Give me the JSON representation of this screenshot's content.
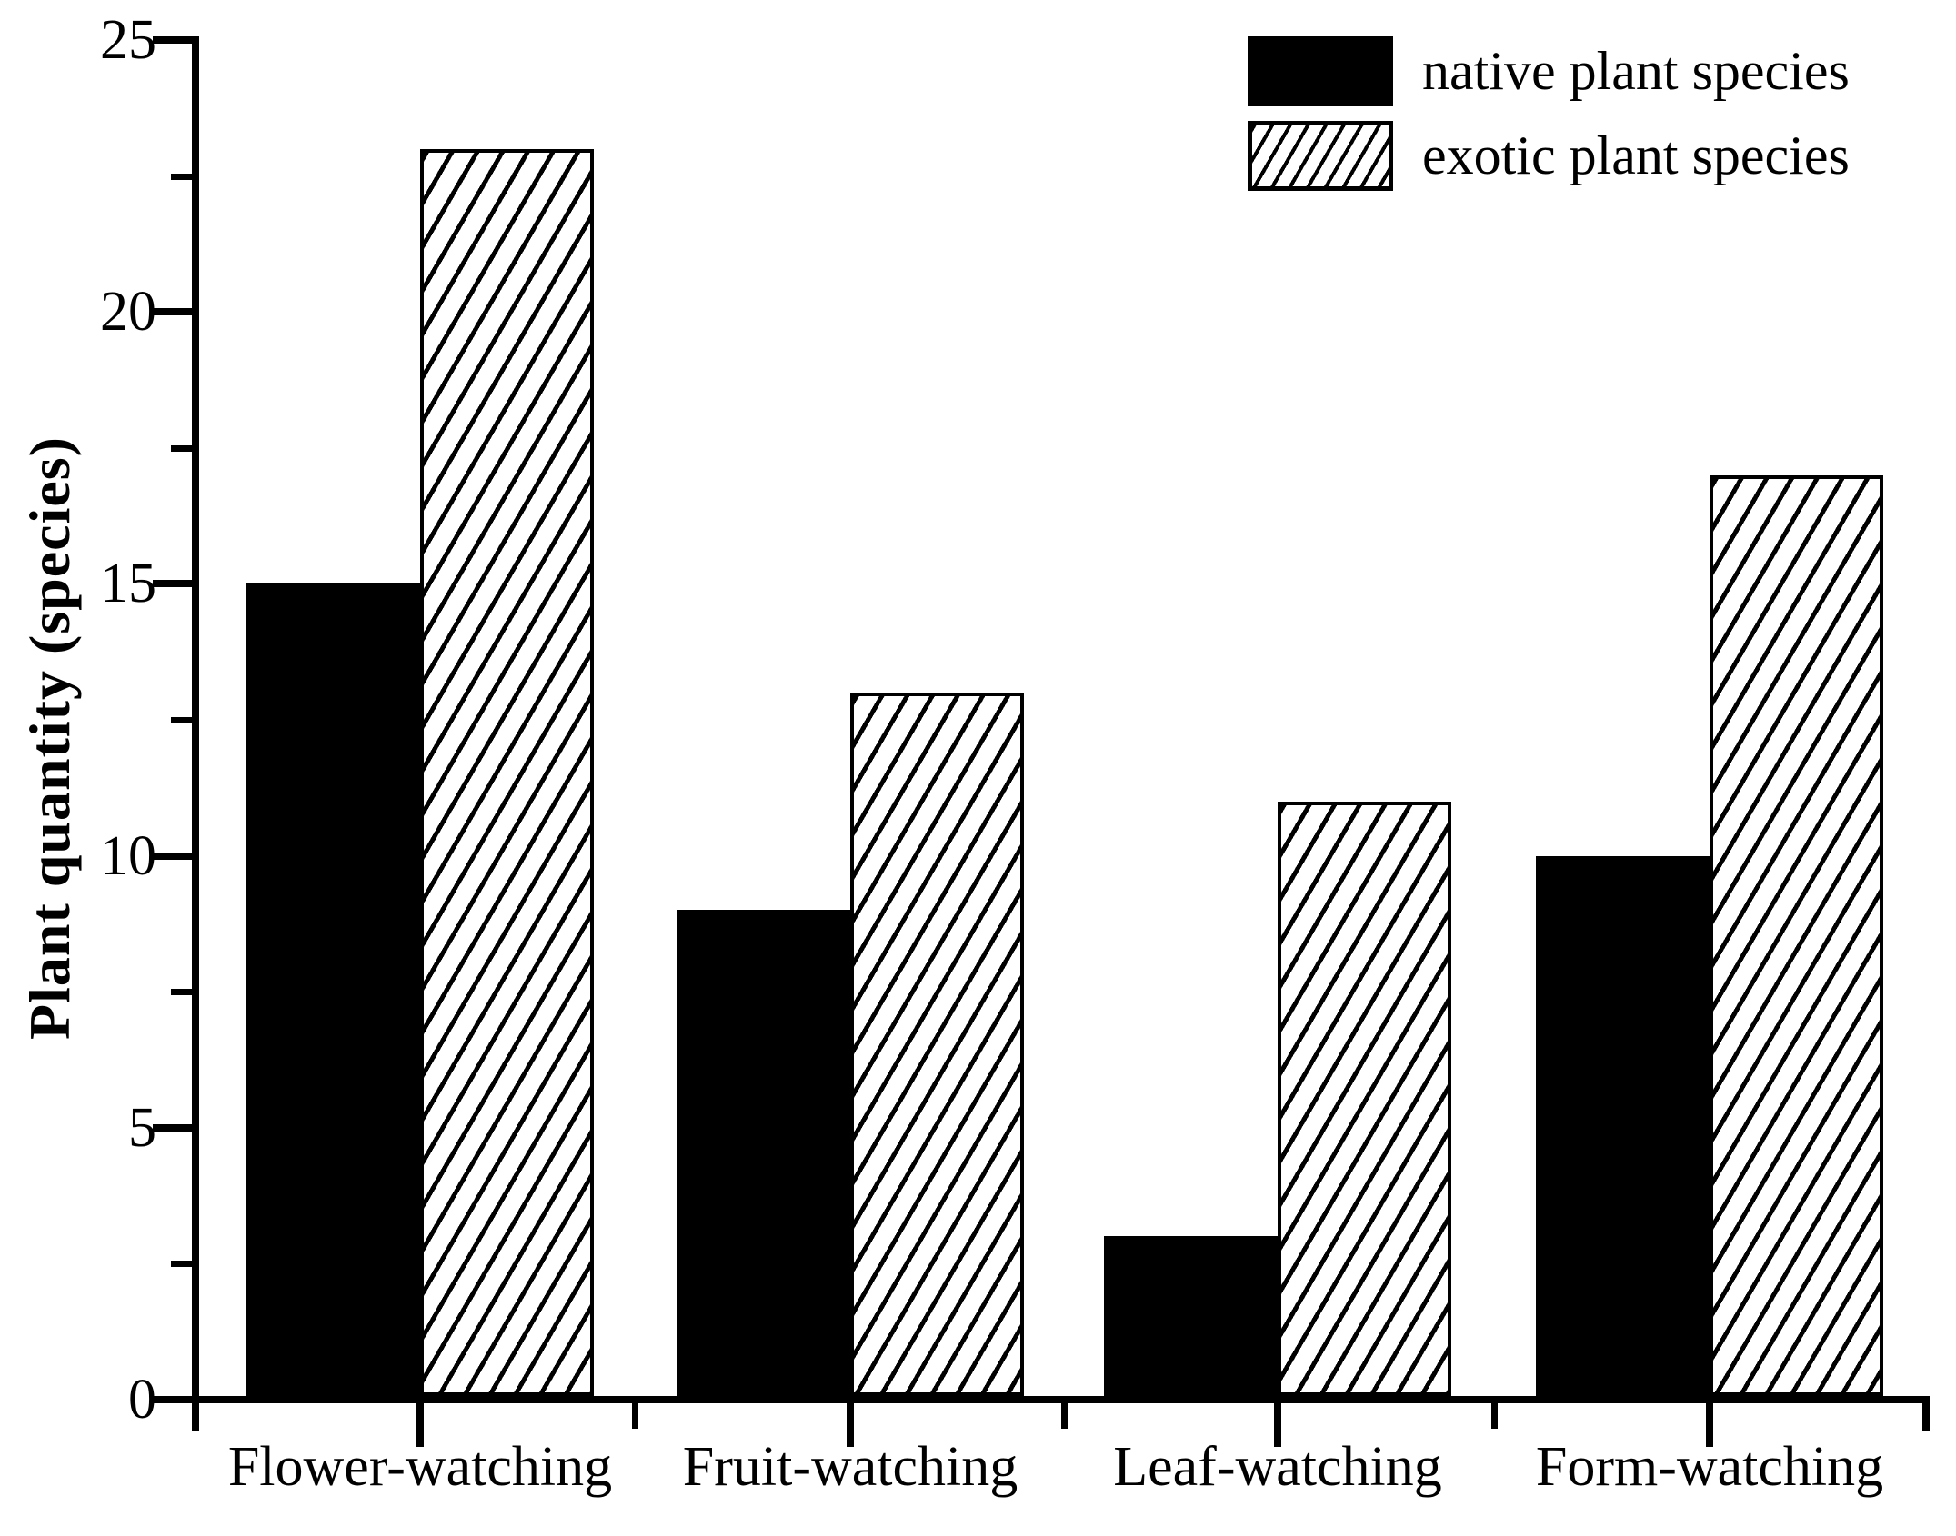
{
  "colors": {
    "foreground": "#000000",
    "background": "#ffffff"
  },
  "chart_data": {
    "type": "bar",
    "title": "",
    "xlabel": "",
    "ylabel": "Plant quantity (species)",
    "categories": [
      "Flower-watching",
      "Fruit-watching",
      "Leaf-watching",
      "Form-watching"
    ],
    "series": [
      {
        "name": "native plant species",
        "fill": "solid-black",
        "values": [
          15,
          9,
          3,
          10
        ]
      },
      {
        "name": "exotic plant species",
        "fill": "diagonal-hatch",
        "values": [
          23,
          13,
          11,
          17
        ]
      }
    ],
    "ylim": [
      0,
      25
    ],
    "yticks": [
      0,
      5,
      10,
      15,
      20,
      25
    ],
    "y_minor_tick_interval": 2.5,
    "grid": false,
    "legend_position": "top-right"
  }
}
